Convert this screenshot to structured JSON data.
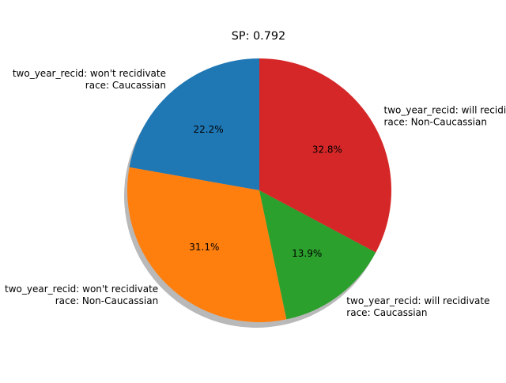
{
  "chart_data": {
    "type": "pie",
    "title": "SP: 0.792",
    "shadow": true,
    "start_angle_deg": 90,
    "direction": "counterclockwise",
    "slices": [
      {
        "label_line1": "two_year_recid: won't recidivate",
        "label_line2": "race: Caucassian",
        "value": 22.2,
        "pct_label": "22.2%",
        "color": "#1f77b4"
      },
      {
        "label_line1": "two_year_recid: won't recidivate",
        "label_line2": "race: Non-Caucassian",
        "value": 31.1,
        "pct_label": "31.1%",
        "color": "#ff7f0e"
      },
      {
        "label_line1": "two_year_recid: will recidivate",
        "label_line2": "race: Caucassian",
        "value": 13.9,
        "pct_label": "13.9%",
        "color": "#2ca02c"
      },
      {
        "label_line1": "two_year_recid: will recidivate",
        "label_line2": "race: Non-Caucassian",
        "value": 32.8,
        "pct_label": "32.8%",
        "color": "#d62728"
      }
    ]
  }
}
